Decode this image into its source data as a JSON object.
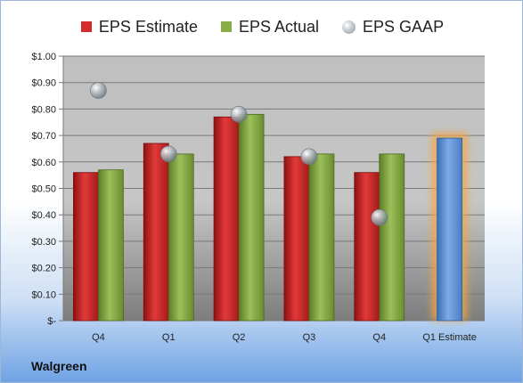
{
  "legend": {
    "estimate": "EPS Estimate",
    "actual": "EPS Actual",
    "gaap": "EPS GAAP"
  },
  "company": "Walgreen",
  "colors": {
    "estimate": "#d42a2a",
    "actual": "#88ad44",
    "gaap": "#b7bfc7",
    "forecast": "#5b8fd4",
    "forecast_glow": "#f6a640"
  },
  "chart_data": {
    "type": "bar",
    "categories": [
      "Q4",
      "Q1",
      "Q2",
      "Q3",
      "Q4",
      "Q1 Estimate"
    ],
    "series": [
      {
        "name": "EPS Estimate",
        "values": [
          0.56,
          0.67,
          0.77,
          0.62,
          0.56,
          null
        ]
      },
      {
        "name": "EPS Actual",
        "values": [
          0.57,
          0.63,
          0.78,
          0.63,
          0.63,
          null
        ]
      },
      {
        "name": "EPS GAAP",
        "values": [
          0.87,
          0.63,
          0.78,
          0.62,
          0.39,
          null
        ]
      }
    ],
    "forecast": {
      "category_index": 5,
      "value": 0.69
    },
    "yticks": [
      "$-",
      "$0.10",
      "$0.20",
      "$0.30",
      "$0.40",
      "$0.50",
      "$0.60",
      "$0.70",
      "$0.80",
      "$0.90",
      "$1.00"
    ],
    "ylim": [
      0,
      1.0
    ],
    "grid": true,
    "legend_position": "top"
  }
}
